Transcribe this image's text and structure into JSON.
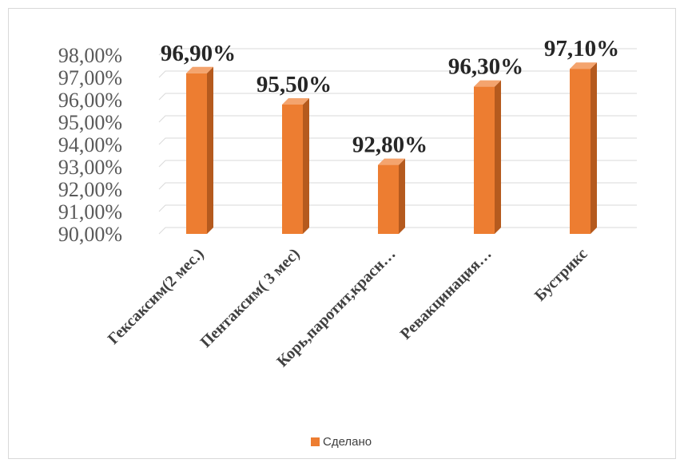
{
  "chart_data": {
    "type": "bar",
    "style": "3d-column",
    "categories": [
      "Гексаксим(2 мес.)",
      "Пентаксим( 3 мес)",
      "Корь,паротит,красн…",
      "Ревакцинация…",
      "Бустрикс"
    ],
    "series": [
      {
        "name": "Сделано",
        "values": [
          96.9,
          95.5,
          92.8,
          96.3,
          97.1
        ]
      }
    ],
    "data_labels": [
      "96,90%",
      "95,50%",
      "92,80%",
      "96,30%",
      "97,10%"
    ],
    "y_ticks": [
      "90,00%",
      "91,00%",
      "92,00%",
      "93,00%",
      "94,00%",
      "95,00%",
      "96,00%",
      "97,00%",
      "98,00%"
    ],
    "ylim": [
      90,
      98
    ],
    "y_step": 1,
    "grid": true,
    "legend_position": "bottom",
    "colors": {
      "bar": "#ED7D31",
      "bar_side": "#B55A1E",
      "bar_top": "#F4A46E",
      "grid": "#d9d9d9",
      "legend_swatch": "#ED7D31"
    }
  }
}
